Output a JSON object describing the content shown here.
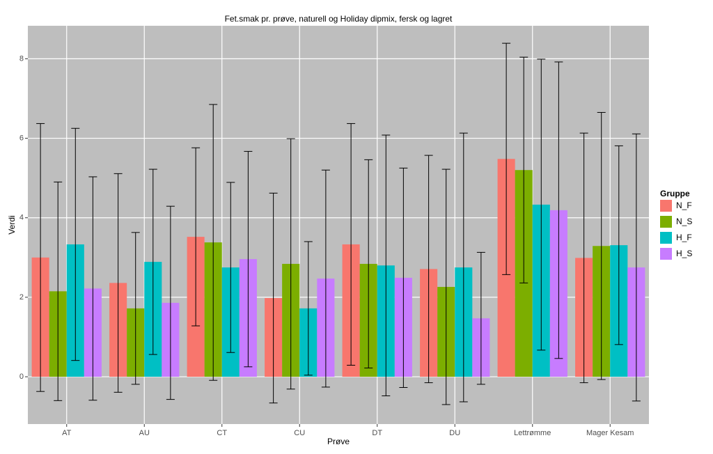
{
  "chart_data": {
    "type": "bar",
    "title": "Fet.smak pr. prøve, naturell og Holiday dipmix, fersk og lagret",
    "x_label": "Prøve",
    "y_label": "Verdi",
    "legend_title": "Gruppe",
    "categories": [
      "AT",
      "AU",
      "CT",
      "CU",
      "DT",
      "DU",
      "Lettrømme",
      "Mager Kesam"
    ],
    "series": [
      {
        "name": "N_F",
        "color": "#F8766D",
        "values": [
          3.0,
          2.36,
          3.52,
          1.98,
          3.33,
          2.71,
          5.48,
          2.99
        ],
        "errors": [
          3.37,
          2.75,
          2.24,
          2.64,
          3.04,
          2.86,
          2.91,
          3.14
        ]
      },
      {
        "name": "N_S",
        "color": "#7CAE00",
        "values": [
          2.15,
          1.72,
          3.38,
          2.84,
          2.84,
          2.26,
          5.2,
          3.29
        ],
        "errors": [
          2.75,
          1.91,
          3.47,
          3.15,
          2.62,
          2.96,
          2.84,
          3.36
        ]
      },
      {
        "name": "H_F",
        "color": "#00BFC4",
        "values": [
          3.33,
          2.89,
          2.75,
          1.72,
          2.8,
          2.75,
          4.33,
          3.31
        ],
        "errors": [
          2.92,
          2.33,
          2.14,
          1.68,
          3.28,
          3.38,
          3.66,
          2.5
        ]
      },
      {
        "name": "H_S",
        "color": "#C77CFF",
        "values": [
          2.22,
          1.86,
          2.96,
          2.47,
          2.49,
          1.47,
          4.19,
          2.75
        ],
        "errors": [
          2.81,
          2.43,
          2.71,
          2.73,
          2.76,
          1.66,
          3.73,
          3.36
        ]
      }
    ],
    "ylim": [
      -1.19,
      8.83
    ],
    "yticks": [
      0,
      2,
      4,
      6,
      8
    ],
    "grid": true,
    "legend_position": "right"
  }
}
